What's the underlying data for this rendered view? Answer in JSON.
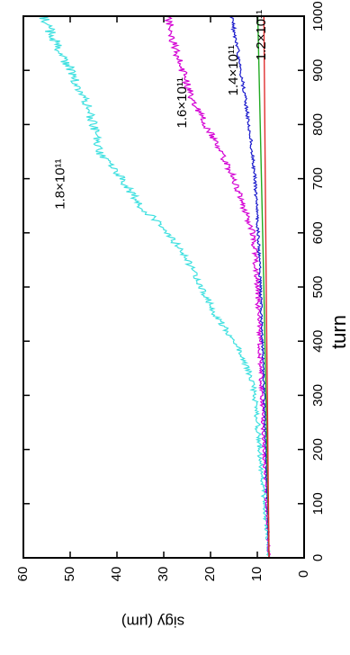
{
  "chart_data": {
    "type": "line",
    "orientation": "rotated-90-clockwise",
    "xlabel": "turn",
    "ylabel": "sigy (μm)",
    "xlim": [
      0,
      1000
    ],
    "ylim": [
      0,
      60
    ],
    "x_ticks": [
      0,
      100,
      200,
      300,
      400,
      500,
      600,
      700,
      800,
      900,
      1000
    ],
    "y_ticks": [
      0,
      10,
      20,
      30,
      40,
      50,
      60
    ],
    "grid": false,
    "series": [
      {
        "name": "1.8×10¹¹",
        "color": "#3ee0e0",
        "noise": 1.2,
        "x": [
          0,
          100,
          200,
          300,
          350,
          400,
          450,
          500,
          550,
          600,
          650,
          700,
          750,
          800,
          850,
          900,
          950,
          1000
        ],
        "y": [
          7.5,
          8.5,
          9.5,
          10.5,
          12,
          15,
          19,
          22,
          25,
          29,
          35,
          39,
          44,
          45,
          47,
          50,
          53,
          56
        ]
      },
      {
        "name": "1.6×10¹¹",
        "color": "#d400d4",
        "noise": 0.9,
        "x": [
          0,
          200,
          400,
          500,
          600,
          650,
          700,
          750,
          800,
          850,
          900,
          950,
          1000
        ],
        "y": [
          7.5,
          8.5,
          9.5,
          10,
          11,
          13,
          15,
          18,
          21,
          24,
          26,
          28,
          29
        ]
      },
      {
        "name": "1.4×10¹¹",
        "color": "#1a1acc",
        "noise": 0.4,
        "x": [
          0,
          200,
          400,
          600,
          700,
          800,
          900,
          950,
          1000
        ],
        "y": [
          7.5,
          8.2,
          8.9,
          9.8,
          10.5,
          11.8,
          13.5,
          14.5,
          15.5
        ]
      },
      {
        "name": "",
        "color": "#22aa22",
        "noise": 0,
        "x": [
          0,
          500,
          1000
        ],
        "y": [
          7.5,
          8.6,
          9.9
        ]
      },
      {
        "name": "1.2×10¹¹",
        "color": "#e03030",
        "noise": 0,
        "x": [
          0,
          500,
          1000
        ],
        "y": [
          7.5,
          8.1,
          8.6
        ]
      }
    ],
    "annotations": [
      {
        "text": "1.8×10¹¹",
        "x": 690,
        "y": 52
      },
      {
        "text": "1.6×10¹¹",
        "x": 840,
        "y": 26
      },
      {
        "text": "1.4×10¹¹",
        "x": 900,
        "y": 15
      },
      {
        "text": "1.2×10¹¹",
        "x": 965,
        "y": 9
      }
    ]
  }
}
